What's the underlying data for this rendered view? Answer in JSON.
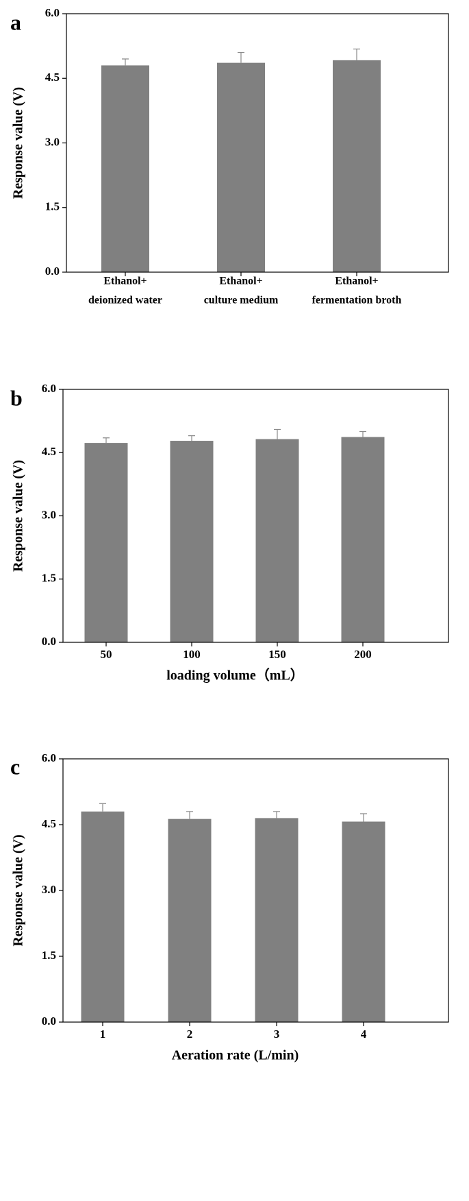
{
  "chart_data": [
    {
      "type": "bar",
      "label": "a",
      "ylabel": "Response value (V)",
      "categories": [
        [
          "Ethanol+",
          "deionized water"
        ],
        [
          "Ethanol+",
          "culture medium"
        ],
        [
          "Ethanol+",
          "fermentation broth"
        ]
      ],
      "values": [
        4.8,
        4.86,
        4.92
      ],
      "errors": [
        0.15,
        0.24,
        0.26
      ],
      "color": "#808080",
      "ylim": [
        0,
        6
      ],
      "yticks": [
        {
          "value": 0,
          "label": "0.0"
        },
        {
          "value": 1.5,
          "label": "1.5"
        },
        {
          "value": 3,
          "label": "3.0"
        },
        {
          "value": 4.5,
          "label": "4.5"
        },
        {
          "value": 6,
          "label": "6.0"
        }
      ]
    },
    {
      "type": "bar",
      "label": "b",
      "ylabel": "Response value (V)",
      "xlabel": "loading volume（mL）",
      "categories": [
        "50",
        "100",
        "150",
        "200"
      ],
      "values": [
        4.73,
        4.78,
        4.82,
        4.87
      ],
      "errors": [
        0.12,
        0.12,
        0.23,
        0.13
      ],
      "color": "#808080",
      "ylim": [
        0,
        6
      ],
      "yticks": [
        {
          "value": 0,
          "label": "0.0"
        },
        {
          "value": 1.5,
          "label": "1.5"
        },
        {
          "value": 3,
          "label": "3.0"
        },
        {
          "value": 4.5,
          "label": "4.5"
        },
        {
          "value": 6,
          "label": "6.0"
        }
      ]
    },
    {
      "type": "bar",
      "label": "c",
      "ylabel": "Response value (V)",
      "xlabel": "Aeration rate (L/min)",
      "categories": [
        "1",
        "2",
        "3",
        "4"
      ],
      "values": [
        4.8,
        4.63,
        4.65,
        4.57
      ],
      "errors": [
        0.18,
        0.17,
        0.15,
        0.18
      ],
      "color": "#808080",
      "ylim": [
        0,
        6
      ],
      "yticks": [
        {
          "value": 0,
          "label": "0.0"
        },
        {
          "value": 1.5,
          "label": "1.5"
        },
        {
          "value": 3,
          "label": "3.0"
        },
        {
          "value": 4.5,
          "label": "4.5"
        },
        {
          "value": 6,
          "label": "6.0"
        }
      ]
    }
  ]
}
